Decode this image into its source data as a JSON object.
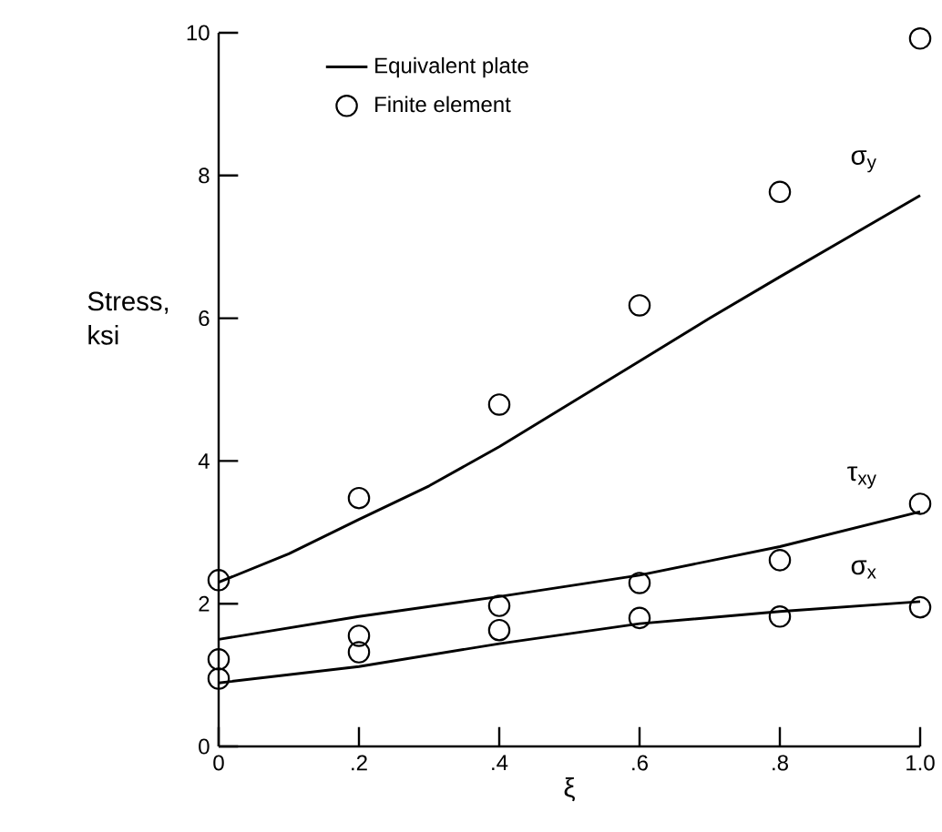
{
  "chart_data": {
    "type": "line",
    "xlabel": "ξ",
    "ylabel": "Stress, ksi",
    "xlim": [
      0,
      1.0
    ],
    "ylim": [
      0,
      10
    ],
    "xticks": [
      0,
      {
        "value": 0.2,
        "label": ".2"
      },
      {
        "value": 0.4,
        "label": ".4"
      },
      {
        "value": 0.6,
        "label": ".6"
      },
      {
        "value": 0.8,
        "label": ".8"
      },
      {
        "value": 1.0,
        "label": "1.0"
      }
    ],
    "yticks": [
      0,
      2,
      4,
      6,
      8,
      10
    ],
    "legend": "top left",
    "series": [
      {
        "name": "Equivalent plate",
        "color": "#000000",
        "line_style": "solid",
        "x": [
          0,
          0.1,
          0.2,
          0.3,
          0.4,
          0.5,
          0.6,
          0.7,
          0.8,
          0.9,
          1.0
        ],
        "values": [
          2.3,
          2.7,
          3.18,
          3.65,
          4.2,
          4.8,
          5.4,
          6.0,
          6.58,
          7.15,
          7.72
        ]
      },
      {
        "name": "Finite element",
        "type": "scatter",
        "color": "#000000",
        "marker": "circle",
        "x": [
          0,
          0.2,
          0.4,
          0.6,
          0.8,
          1.0
        ],
        "values": [
          2.33,
          3.48,
          4.79,
          6.18,
          7.77,
          9.92
        ]
      },
      {
        "color": "#000000",
        "line_style": "solid",
        "x": [
          0,
          0.2,
          0.4,
          0.6,
          0.8,
          1.0
        ],
        "values": [
          1.5,
          1.82,
          2.1,
          2.4,
          2.8,
          3.29
        ]
      },
      {
        "type": "scatter",
        "color": "#000000",
        "marker": "circle",
        "x": [
          0,
          0.2,
          0.4,
          0.6,
          0.8,
          1.0
        ],
        "values": [
          1.22,
          1.55,
          1.97,
          2.29,
          2.61,
          3.4
        ]
      },
      {
        "color": "#000000",
        "line_style": "solid",
        "x": [
          0,
          0.2,
          0.4,
          0.6,
          0.8,
          1.0
        ],
        "values": [
          0.89,
          1.12,
          1.44,
          1.72,
          1.89,
          2.03
        ]
      },
      {
        "type": "scatter",
        "color": "#000000",
        "marker": "circle",
        "x": [
          0,
          0.2,
          0.4,
          0.6,
          0.8,
          1.0
        ],
        "values": [
          0.95,
          1.32,
          1.63,
          1.8,
          1.82,
          1.95
        ]
      }
    ],
    "annotations": [
      "σ$_{y}$",
      "τ$_{xy}$",
      "σ$_{x}$"
    ]
  }
}
